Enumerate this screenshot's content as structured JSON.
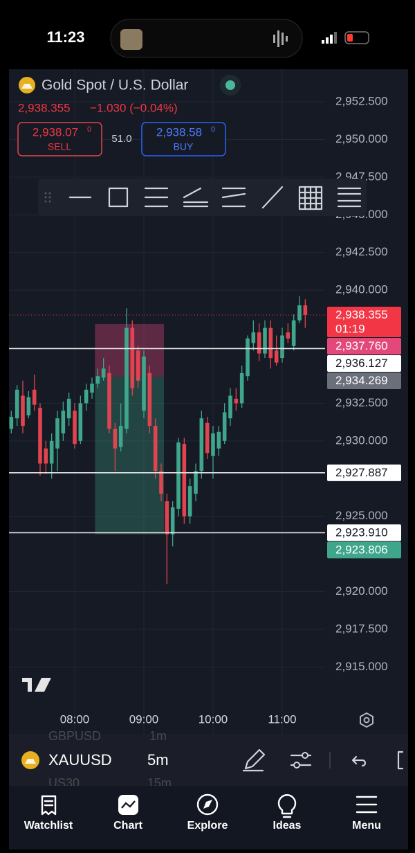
{
  "status_bar": {
    "time": "11:23"
  },
  "header": {
    "title": "Gold Spot / U.S. Dollar",
    "price": "2,938.355",
    "change": "−1.030 (−0.04%)",
    "sell": {
      "price": "2,938.07",
      "price_sup": "0",
      "label": "SELL"
    },
    "spread": "51.0",
    "buy": {
      "price": "2,938.58",
      "price_sup": "0",
      "label": "BUY"
    }
  },
  "chart_data": {
    "type": "candlestick",
    "categories": [
      null,
      null,
      null,
      null,
      null,
      null,
      null,
      null,
      null,
      null,
      null,
      "08:00",
      null,
      null,
      null,
      null,
      null,
      null,
      null,
      null,
      null,
      null,
      null,
      "09:00",
      null,
      null,
      null,
      null,
      null,
      null,
      null,
      null,
      null,
      null,
      null,
      "10:00",
      null,
      null,
      null,
      null,
      null,
      null,
      null,
      null,
      null,
      null,
      null,
      "11:00",
      null,
      null,
      null,
      null
    ],
    "open": [
      2930.8,
      2931.5,
      2933,
      2931.7,
      2933.4,
      2932.2,
      2929.5,
      2928.5,
      2929.5,
      2930.5,
      2931.5,
      2932,
      2930,
      2932.5,
      2933.2,
      2933.8,
      2934.2,
      2934.5,
      2930.8,
      2929.6,
      2930.8,
      2937.5,
      2936,
      2932,
      2934.5,
      2931,
      2928,
      2926,
      2923.8,
      2925.5,
      2929.8,
      2925,
      2926.5,
      2928,
      2931.2,
      2929,
      2929.5,
      2930,
      2931.5,
      2932.8,
      2932.5,
      2934.3,
      2936.5,
      2937.2,
      2935.8,
      2937.5,
      2936,
      2935.5,
      2937.2,
      2936.3,
      2938,
      2939
    ],
    "high": [
      2932,
      2933.7,
      2934,
      2933.3,
      2934.4,
      2932.5,
      2930,
      2930.5,
      2932,
      2932.6,
      2933.2,
      2932.5,
      2933,
      2933.8,
      2934.2,
      2934.8,
      2935.5,
      2935,
      2931.2,
      2932.5,
      2938.8,
      2938,
      2936.3,
      2936,
      2935,
      2931.5,
      2928.5,
      2926.5,
      2926,
      2930.2,
      2930.2,
      2927.5,
      2928.5,
      2932,
      2931.6,
      2931,
      2931,
      2932.5,
      2933.5,
      2933.5,
      2935,
      2937,
      2938,
      2937.8,
      2938,
      2938,
      2937,
      2937.5,
      2937.8,
      2938.4,
      2939.6,
      2939.4
    ],
    "low": [
      2930.5,
      2931,
      2930.5,
      2931.5,
      2932,
      2927.7,
      2927.8,
      2927.5,
      2928,
      2930,
      2931,
      2929.5,
      2929.8,
      2932,
      2932.8,
      2933.5,
      2934,
      2930.5,
      2928,
      2929.3,
      2930.5,
      2933,
      2933.5,
      2931.5,
      2930.5,
      2927.5,
      2926,
      2920.5,
      2923,
      2925,
      2924.5,
      2924.5,
      2926,
      2927.5,
      2928.8,
      2927.5,
      2929,
      2929.8,
      2931,
      2932,
      2932.2,
      2934,
      2936,
      2935.3,
      2935.5,
      2934.8,
      2935,
      2935.2,
      2936.5,
      2936,
      2937.8,
      2937.5
    ],
    "close": [
      2931.6,
      2933.4,
      2931,
      2932.9,
      2932.4,
      2928.5,
      2928.5,
      2930,
      2931.5,
      2932,
      2932.8,
      2929.8,
      2932.5,
      2933.4,
      2933.8,
      2934.3,
      2934.8,
      2930.8,
      2929.5,
      2931,
      2937.5,
      2933.5,
      2934,
      2935.6,
      2931,
      2928,
      2926.5,
      2923.8,
      2925.6,
      2929.9,
      2925,
      2927,
      2928,
      2931.5,
      2929.2,
      2930.5,
      2930.6,
      2931.9,
      2933,
      2932.5,
      2934.5,
      2936.8,
      2937.2,
      2935.8,
      2937.5,
      2935.5,
      2935.2,
      2937,
      2936.8,
      2938,
      2939,
      2938.355
    ],
    "up_color": "#3fa68c",
    "down_color": "#e0444f",
    "ylim": [
      2912.4,
      2954.66
    ],
    "yticks": [
      {
        "value": 2915,
        "label": "2,915.000"
      },
      {
        "value": 2917.5,
        "label": "2,917.500"
      },
      {
        "value": 2920,
        "label": "2,920.000"
      },
      {
        "value": 2925,
        "label": "2,925.000"
      },
      {
        "value": 2930,
        "label": "2,930.000"
      },
      {
        "value": 2932.5,
        "label": "2,932.500"
      },
      {
        "value": 2940,
        "label": "2,940.000"
      },
      {
        "value": 2942.5,
        "label": "2,942.500"
      },
      {
        "value": 2945,
        "label": "2,945.000"
      },
      {
        "value": 2947.5,
        "label": "2,947.500"
      },
      {
        "value": 2950,
        "label": "2,950.000"
      },
      {
        "value": 2952.5,
        "label": "2,952.500"
      }
    ],
    "grid": true,
    "current_price": {
      "value": 2938.355,
      "label": "2,938.355",
      "countdown": "01:19",
      "color": "#f23645"
    },
    "position": {
      "stop": {
        "value": 2937.76,
        "label": "2,937.760",
        "color": "#e2497a"
      },
      "entry": {
        "value": 2934.269,
        "label": "2,934.269",
        "color": "#6b6f79"
      },
      "target": {
        "value": 2923.806,
        "label": "2,923.806",
        "color": "#3fa68c"
      }
    },
    "price_lines": [
      {
        "value": 2936.127,
        "label": "2,936.127"
      },
      {
        "value": 2927.887,
        "label": "2,927.887"
      },
      {
        "value": 2923.91,
        "label": "2,923.910"
      }
    ]
  },
  "bottom_bar": {
    "symbol": "XAUUSD",
    "interval": "5m",
    "faded": [
      "GBPUSD",
      "1m",
      "US30",
      "15m"
    ]
  },
  "nav": {
    "items": [
      "Watchlist",
      "Chart",
      "Explore",
      "Ideas",
      "Menu"
    ]
  }
}
